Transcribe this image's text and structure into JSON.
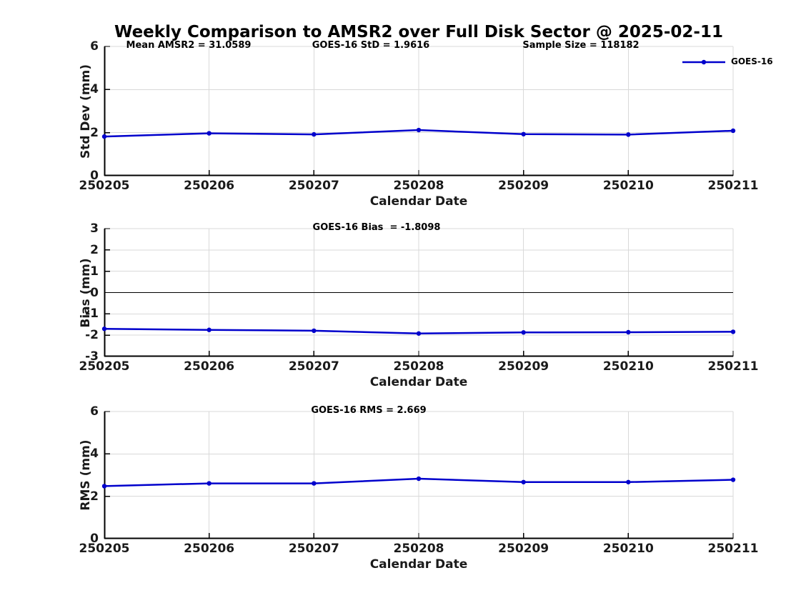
{
  "title": "Weekly Comparison to AMSR2 over Full Disk Sector @ 2025-02-11",
  "legend": {
    "label": "GOES-16"
  },
  "colors": {
    "line": "#0000CC",
    "grid": "#D9D9D9",
    "axis": "#000000",
    "tick_label": "#1A1A1A",
    "zero_line": "#000000",
    "background": "#FFFFFF"
  },
  "chart_data": [
    {
      "type": "line",
      "stats": [
        "Mean AMSR2 = 31.0589",
        "GOES-16 StD = 1.9616",
        "Sample Size = 118182"
      ],
      "categories": [
        "250205",
        "250206",
        "250207",
        "250208",
        "250209",
        "250210",
        "250211"
      ],
      "series": [
        {
          "name": "GOES-16",
          "values": [
            1.82,
            1.97,
            1.92,
            2.12,
            1.93,
            1.91,
            2.09
          ]
        }
      ],
      "xlabel": "Calendar Date",
      "ylabel": "Std Dev (mm)",
      "ylim": [
        0,
        6
      ],
      "yticks": [
        0,
        2,
        4,
        6
      ],
      "grid": true,
      "zero_line": false,
      "legend_position": "top-right-outside"
    },
    {
      "type": "line",
      "stats": [
        "GOES-16 Bias  = -1.8098"
      ],
      "categories": [
        "250205",
        "250206",
        "250207",
        "250208",
        "250209",
        "250210",
        "250211"
      ],
      "series": [
        {
          "name": "GOES-16",
          "values": [
            -1.7,
            -1.75,
            -1.79,
            -1.92,
            -1.87,
            -1.86,
            -1.84
          ]
        }
      ],
      "xlabel": "Calendar Date",
      "ylabel": "Bias (mm)",
      "ylim": [
        -3,
        3
      ],
      "yticks": [
        -3,
        -2,
        -1,
        0,
        1,
        2,
        3
      ],
      "grid": true,
      "zero_line": true
    },
    {
      "type": "line",
      "stats": [
        "GOES-16 RMS = 2.669"
      ],
      "categories": [
        "250205",
        "250206",
        "250207",
        "250208",
        "250209",
        "250210",
        "250211"
      ],
      "series": [
        {
          "name": "GOES-16",
          "values": [
            2.48,
            2.61,
            2.61,
            2.83,
            2.67,
            2.67,
            2.78
          ]
        }
      ],
      "xlabel": "Calendar Date",
      "ylabel": "RMS (mm)",
      "ylim": [
        0,
        6
      ],
      "yticks": [
        0,
        2,
        4,
        6
      ],
      "grid": true,
      "zero_line": false
    }
  ]
}
